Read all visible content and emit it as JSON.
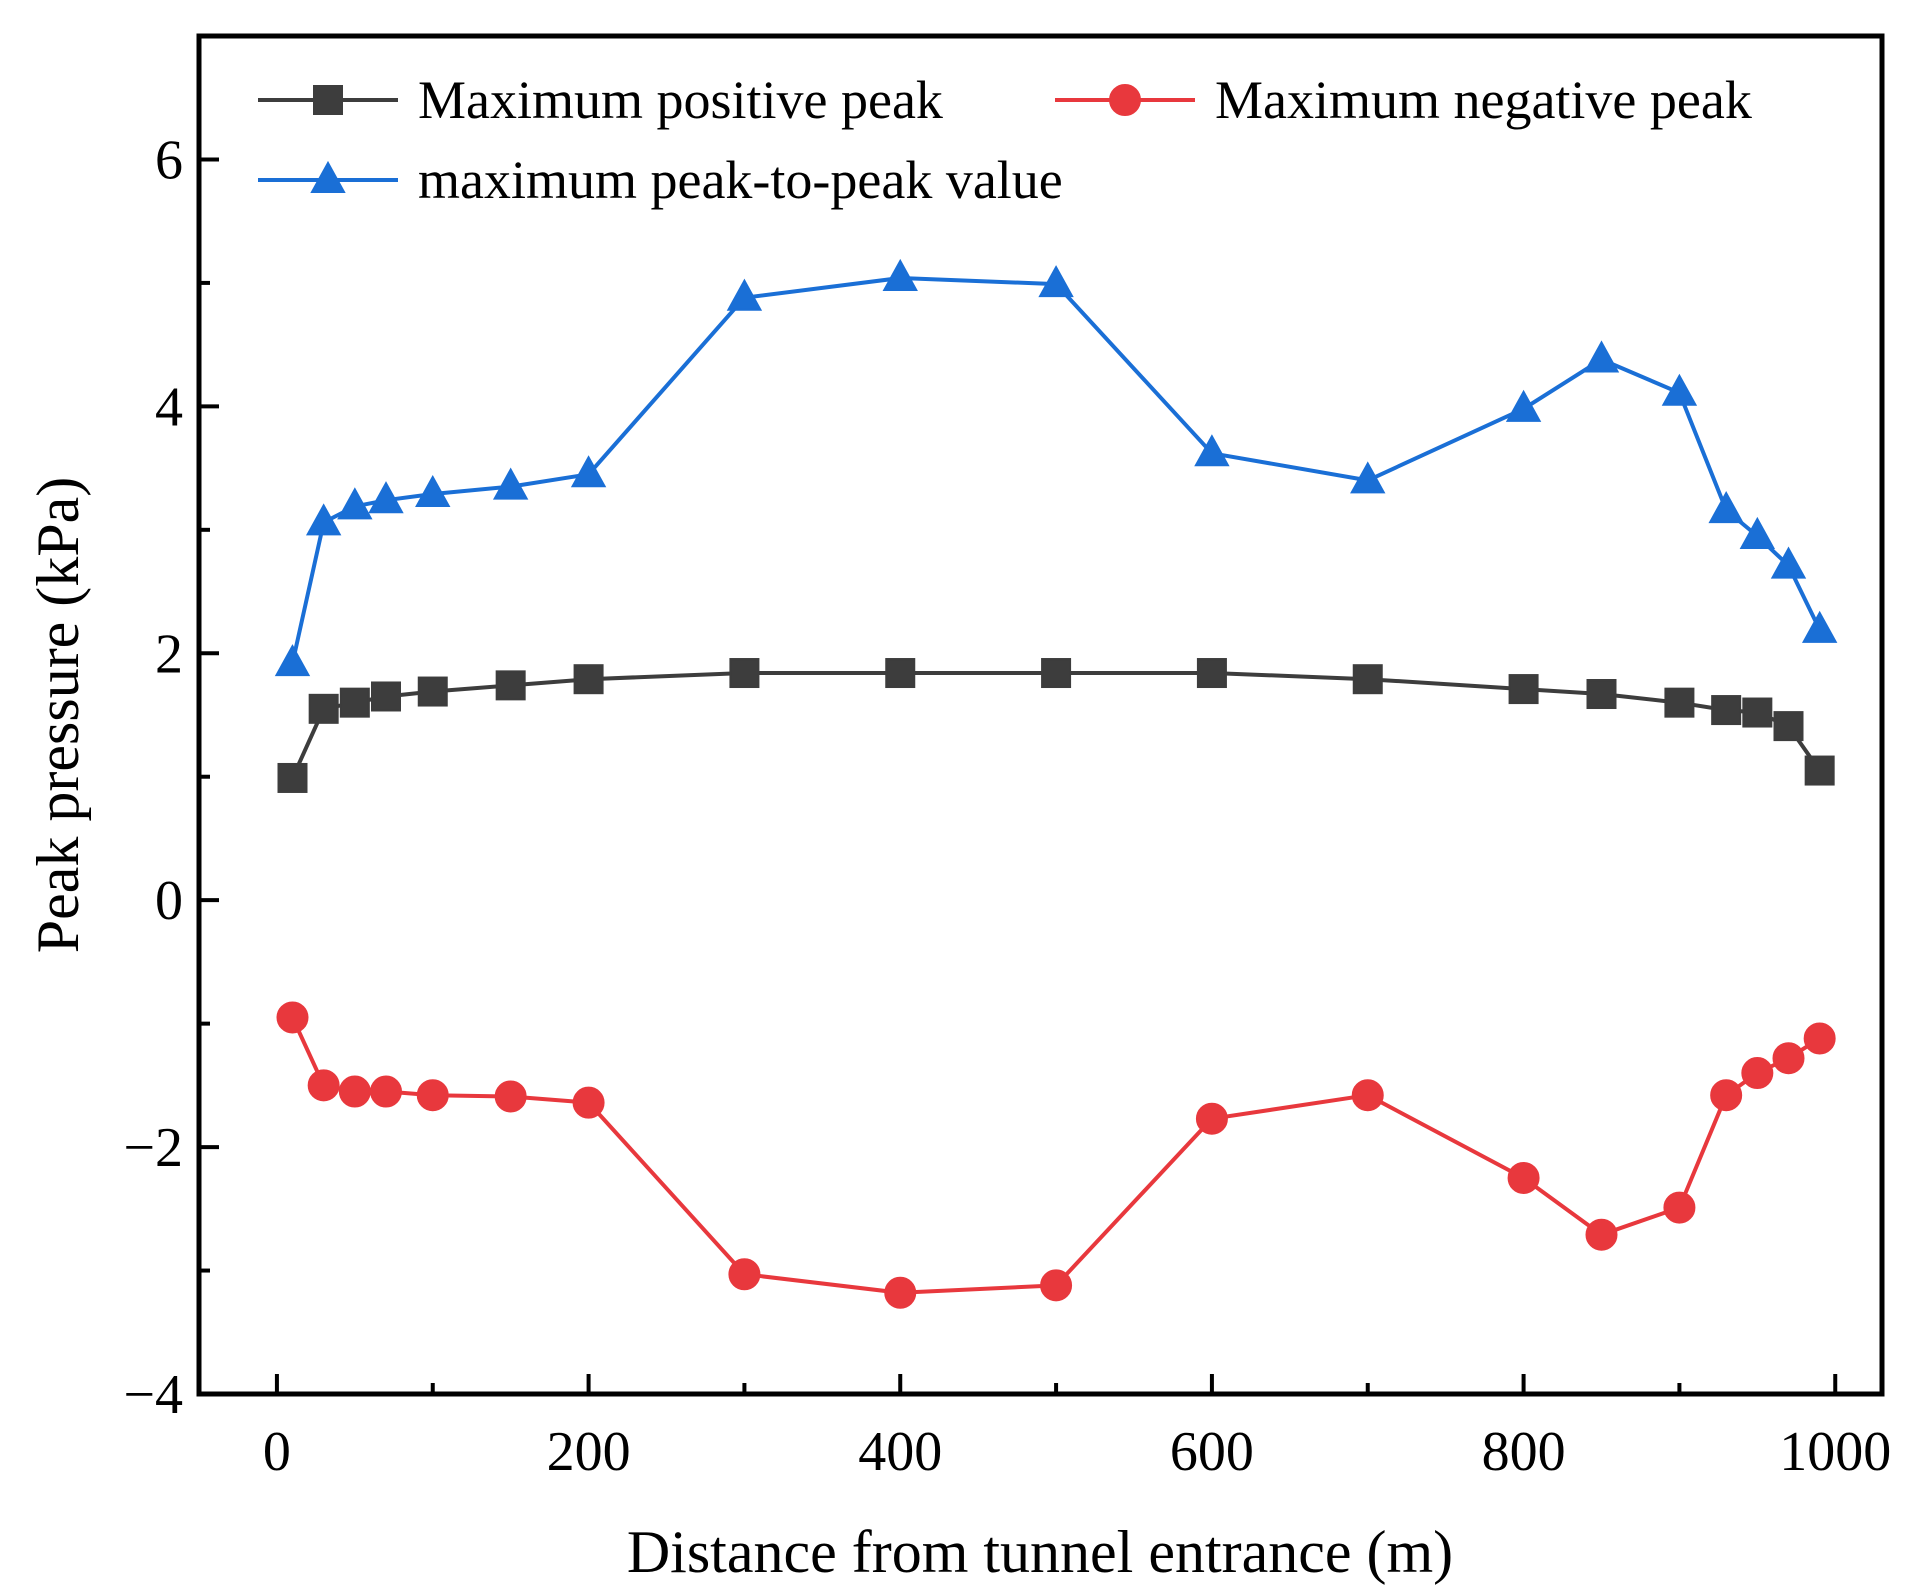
{
  "chart_data": {
    "type": "line",
    "title": "",
    "xlabel": "Distance from tunnel entrance (m)",
    "ylabel": "Peak pressure (kPa)",
    "xlim": [
      -50,
      1030
    ],
    "ylim": [
      -4,
      7
    ],
    "x_ticks": [
      0,
      200,
      400,
      600,
      800,
      1000
    ],
    "y_ticks": [
      -4,
      -2,
      0,
      2,
      4,
      6
    ],
    "x_tick_labels": [
      "0",
      "200",
      "400",
      "600",
      "800",
      "1000"
    ],
    "y_tick_labels": [
      "−4",
      "−2",
      "0",
      "2",
      "4",
      "6"
    ],
    "grid": false,
    "legend_position": "top",
    "x": [
      10,
      30,
      50,
      70,
      100,
      150,
      200,
      300,
      400,
      500,
      600,
      700,
      800,
      850,
      900,
      930,
      950,
      970,
      990
    ],
    "series": [
      {
        "name": "Maximum positive peak",
        "color": "#3d3d3d",
        "marker": "square",
        "values": [
          0.99,
          1.55,
          1.6,
          1.65,
          1.69,
          1.74,
          1.79,
          1.84,
          1.84,
          1.84,
          1.84,
          1.79,
          1.71,
          1.67,
          1.6,
          1.54,
          1.52,
          1.41,
          1.05
        ]
      },
      {
        "name": "Maximum negative peak",
        "color": "#e8383d",
        "marker": "circle",
        "values": [
          -0.95,
          -1.5,
          -1.55,
          -1.55,
          -1.58,
          -1.59,
          -1.64,
          -3.03,
          -3.18,
          -3.12,
          -1.77,
          -1.58,
          -2.25,
          -2.71,
          -2.49,
          -1.58,
          -1.4,
          -1.28,
          -1.12
        ]
      },
      {
        "name": "maximum peak-to-peak value",
        "color": "#1a6fd6",
        "marker": "triangle",
        "values": [
          1.92,
          3.06,
          3.19,
          3.24,
          3.29,
          3.35,
          3.45,
          4.88,
          5.04,
          4.99,
          3.62,
          3.4,
          3.98,
          4.38,
          4.11,
          3.16,
          2.95,
          2.71,
          2.19
        ]
      }
    ]
  }
}
